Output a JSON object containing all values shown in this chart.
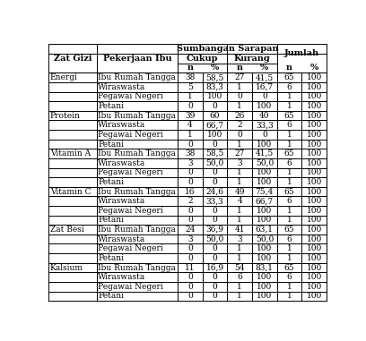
{
  "col_headers_row1": [
    "Zat Gizi",
    "Pekerjaan Ibu",
    "Sumbangan Sarapan",
    "",
    "",
    "",
    "Jumlah",
    ""
  ],
  "col_headers_row2": [
    "",
    "",
    "Cukup",
    "",
    "Kurang",
    "",
    "",
    ""
  ],
  "col_headers_row3": [
    "",
    "",
    "n",
    "%",
    "n",
    "%",
    "n",
    "%"
  ],
  "header1": "Sumbangan Sarapan",
  "header2_cukup": "Cukup",
  "header2_kurang": "Kurang",
  "header3": "Jumlah",
  "rows": [
    [
      "Energi",
      "Ibu Rumah Tangga",
      "38",
      "58,5",
      "27",
      "41,5",
      "65",
      "100"
    ],
    [
      "",
      "Wiraswasta",
      "5",
      "83,3",
      "1",
      "16,7",
      "6",
      "100"
    ],
    [
      "",
      "Pegawai Negeri",
      "1",
      "100",
      "0",
      "0",
      "1",
      "100"
    ],
    [
      "",
      "Petani",
      "0",
      "0",
      "1",
      "100",
      "1",
      "100"
    ],
    [
      "Protein",
      "Ibu Rumah Tangga",
      "39",
      "60",
      "26",
      "40",
      "65",
      "100"
    ],
    [
      "",
      "Wiraswasta",
      "4",
      "66,7",
      "2",
      "33,3",
      "6",
      "100"
    ],
    [
      "",
      "Pegawai Negeri",
      "1",
      "100",
      "0",
      "0",
      "1",
      "100"
    ],
    [
      "",
      "Petani",
      "0",
      "0",
      "1",
      "100",
      "1",
      "100"
    ],
    [
      "Vitamin A",
      "Ibu Rumah Tangga",
      "38",
      "58,5",
      "27",
      "41,5",
      "65",
      "100"
    ],
    [
      "",
      "Wiraswasta",
      "3",
      "50,0",
      "3",
      "50,0",
      "6",
      "100"
    ],
    [
      "",
      "Pegawai Negeri",
      "0",
      "0",
      "1",
      "100",
      "1",
      "100"
    ],
    [
      "",
      "Petani",
      "0",
      "0",
      "1",
      "100",
      "1",
      "100"
    ],
    [
      "Vitamin C",
      "Ibu Rumah Tangga",
      "16",
      "24,6",
      "49",
      "75,4",
      "65",
      "100"
    ],
    [
      "",
      "Wiraswasta",
      "2",
      "33,3",
      "4",
      "66,7",
      "6",
      "100"
    ],
    [
      "",
      "Pegawai Negeri",
      "0",
      "0",
      "1",
      "100",
      "1",
      "100"
    ],
    [
      "",
      "Petani",
      "0",
      "0",
      "1",
      "100",
      "1",
      "100"
    ],
    [
      "Zat Besi",
      "Ibu Rumah Tangga",
      "24",
      "36,9",
      "41",
      "63,1",
      "65",
      "100"
    ],
    [
      "",
      "Wiraswasta",
      "3",
      "50,0",
      "3",
      "50,0",
      "6",
      "100"
    ],
    [
      "",
      "Pegawai Negeri",
      "0",
      "0",
      "1",
      "100",
      "1",
      "100"
    ],
    [
      "",
      "Petani",
      "0",
      "0",
      "1",
      "100",
      "1",
      "100"
    ],
    [
      "Kalsium",
      "Ibu Rumah Tangga",
      "11",
      "16,9",
      "54",
      "83,1",
      "65",
      "100"
    ],
    [
      "",
      "Wiraswasta",
      "0",
      "0",
      "6",
      "100",
      "6",
      "100"
    ],
    [
      "",
      "Pegawai Negeri",
      "0",
      "0",
      "1",
      "100",
      "1",
      "100"
    ],
    [
      "",
      "Petani",
      "0",
      "0",
      "1",
      "100",
      "1",
      "100"
    ]
  ],
  "figsize": [
    4.08,
    3.81
  ],
  "dpi": 100,
  "font_size": 6.5,
  "header_font_size": 7.0,
  "bg_color": "#ffffff",
  "line_color": "#000000"
}
